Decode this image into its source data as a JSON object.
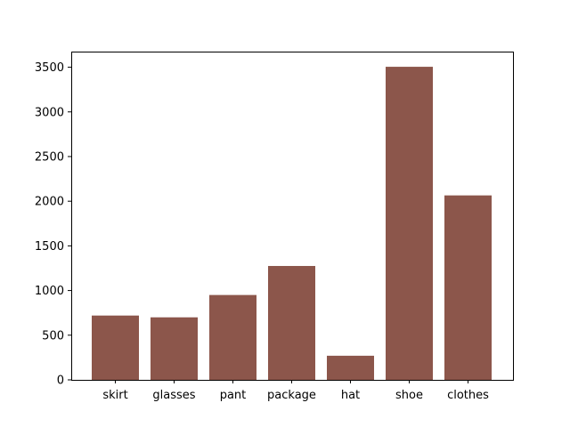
{
  "chart_data": {
    "type": "bar",
    "categories": [
      "skirt",
      "glasses",
      "pant",
      "package",
      "hat",
      "shoe",
      "clothes"
    ],
    "values": [
      720,
      700,
      950,
      1275,
      270,
      3505,
      2065
    ],
    "ylim": [
      0,
      3675
    ],
    "yticks": [
      0,
      500,
      1000,
      1500,
      2000,
      2500,
      3000,
      3500
    ],
    "ytick_labels": [
      "0",
      "500",
      "1000",
      "1500",
      "2000",
      "2500",
      "3000",
      "3500"
    ],
    "bar_color": "#8c564b",
    "title": "",
    "xlabel": "",
    "ylabel": "",
    "grid": false,
    "legend": "none"
  }
}
